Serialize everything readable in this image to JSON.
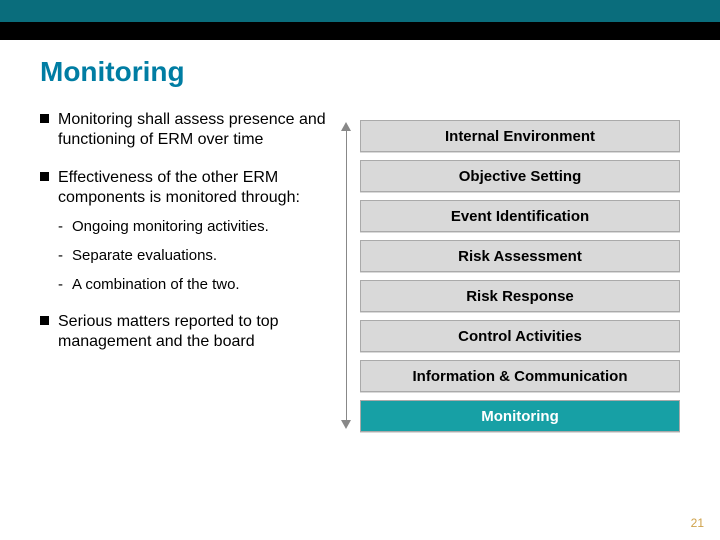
{
  "slide": {
    "title": "Monitoring",
    "bullets": [
      {
        "text": "Monitoring shall assess presence and functioning of ERM over time",
        "subs": []
      },
      {
        "text": "Effectiveness of the other ERM components is monitored through:",
        "subs": [
          "Ongoing monitoring activities.",
          "Separate evaluations.",
          "A combination of the two."
        ]
      },
      {
        "text": "Serious matters reported to top management and the board",
        "subs": []
      }
    ],
    "layers": [
      {
        "label": "Internal Environment",
        "highlight": false
      },
      {
        "label": "Objective Setting",
        "highlight": false
      },
      {
        "label": "Event Identification",
        "highlight": false
      },
      {
        "label": "Risk Assessment",
        "highlight": false
      },
      {
        "label": "Risk Response",
        "highlight": false
      },
      {
        "label": "Control Activities",
        "highlight": false
      },
      {
        "label": "Information & Communication",
        "highlight": false
      },
      {
        "label": "Monitoring",
        "highlight": true
      }
    ],
    "page_number": "21",
    "colors": {
      "topbar": "#0a6d7c",
      "title": "#007da3",
      "layer_bg": "#d9d9d9",
      "layer_highlight": "#17a0a5",
      "pagenum": "#cfa24a"
    }
  }
}
